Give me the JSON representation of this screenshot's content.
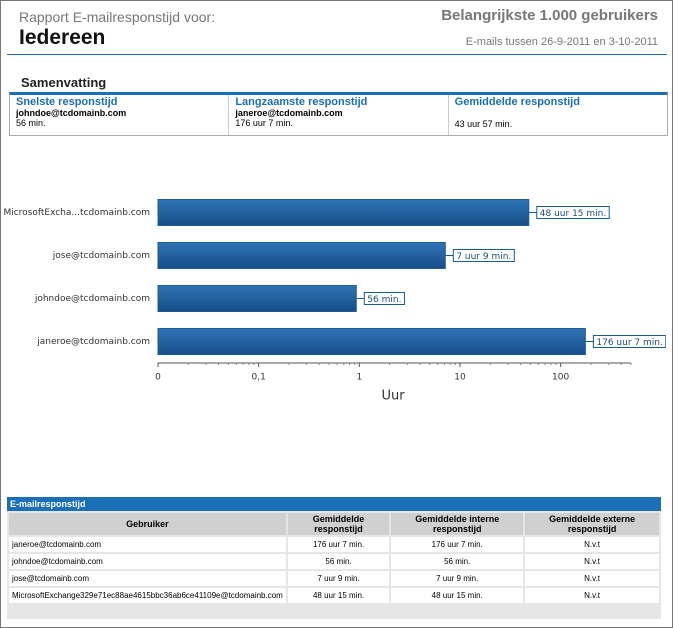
{
  "header": {
    "report_label": "Rapport E-mailresponstijd voor:",
    "scope": "Iedereen",
    "title": "Belangrijkste 1.000 gebruikers",
    "period": "E-mails tussen 26-9-2011 en 3-10-2011"
  },
  "summary": {
    "title": "Samenvatting",
    "columns": [
      {
        "heading": "Snelste responstijd",
        "user": "johndoe@tcdomainb.com",
        "value": "56 min."
      },
      {
        "heading": "Langzaamste responstijd",
        "user": "janeroe@tcdomainb.com",
        "value": "176 uur 7 min."
      },
      {
        "heading": "Gemiddelde responstijd",
        "value": "43 uur 57 min."
      }
    ]
  },
  "chart_data": {
    "type": "bar",
    "orientation": "horizontal",
    "x_label": "Uur",
    "log_scale": true,
    "color": "#1f5c9c",
    "categories": [
      "MicrosoftExcha...tcdomainb.com",
      "jose@tcdomainb.com",
      "johndoe@tcdomainb.com",
      "janeroe@tcdomainb.com"
    ],
    "values": [
      48.25,
      7.15,
      0.933,
      176.117
    ],
    "value_labels": [
      "48 uur 15 min.",
      "7 uur 9 min.",
      "56 min.",
      "176 uur 7 min."
    ],
    "xlim": [
      0.01,
      500
    ],
    "xticks": [
      {
        "value": 0.01,
        "label": "0"
      },
      {
        "value": 0.1,
        "label": "0,1"
      },
      1,
      10,
      100
    ]
  },
  "table": {
    "title": "E-mailresponstijd",
    "columns": [
      "Gebruiker",
      "Gemiddelde responstijd",
      "Gemiddelde interne responstijd",
      "Gemiddelde externe responstijd"
    ],
    "rows": [
      [
        "janeroe@tcdomainb.com",
        "176 uur 7 min.",
        "176 uur 7 min.",
        "N.v.t"
      ],
      [
        "johndoe@tcdomainb.com",
        "56 min.",
        "56 min.",
        "N.v.t"
      ],
      [
        "jose@tcdomainb.com",
        "7 uur 9 min.",
        "7 uur 9 min.",
        "N.v.t"
      ],
      [
        "MicrosoftExchange329e71ec88ae4615bbc36ab6ce41109e@tcdomainb.com",
        "48 uur 15 min.",
        "48 uur 15 min.",
        "N.v.t"
      ]
    ]
  }
}
